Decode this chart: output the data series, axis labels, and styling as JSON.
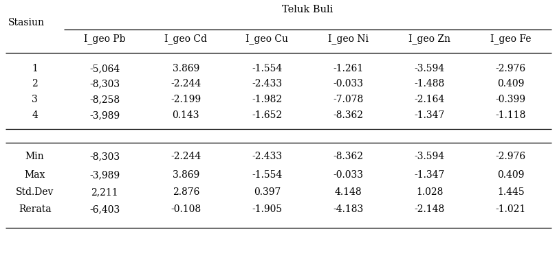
{
  "title": "Teluk Buli",
  "col_headers": [
    "I_geo Pb",
    "I_geo Cd",
    "I_geo Cu",
    "I_geo Ni",
    "I_geo Zn",
    "I_geo Fe"
  ],
  "station_label": "Stasiun",
  "data_rows": [
    [
      "1",
      "-5,064",
      "3.869",
      "-1.554",
      "-1.261",
      "-3.594",
      "-2.976"
    ],
    [
      "2",
      "-8,303",
      "-2.244",
      "-2.433",
      "-0.033",
      "-1.488",
      "0.409"
    ],
    [
      "3",
      "-8,258",
      "-2.199",
      "-1.982",
      "-7.078",
      "-2.164",
      "-0.399"
    ],
    [
      "4",
      "-3,989",
      "0.143",
      "-1.652",
      "-8.362",
      "-1.347",
      "-1.118"
    ]
  ],
  "stat_rows": [
    [
      "Min",
      "-8,303",
      "-2.244",
      "-2.433",
      "-8.362",
      "-3.594",
      "-2.976"
    ],
    [
      "Max",
      "-3,989",
      "3.869",
      "-1.554",
      "-0.033",
      "-1.347",
      "0.409"
    ],
    [
      "Std.Dev",
      "2,211",
      "2.876",
      "0.397",
      "4.148",
      "1.028",
      "1.445"
    ],
    [
      "Rerata",
      "-6,403",
      "-0.108",
      "-1.905",
      "-4.183",
      "-2.148",
      "-1.021"
    ]
  ],
  "font_size": 10.0,
  "fig_width": 8.1,
  "fig_height": 3.76,
  "dpi": 100
}
